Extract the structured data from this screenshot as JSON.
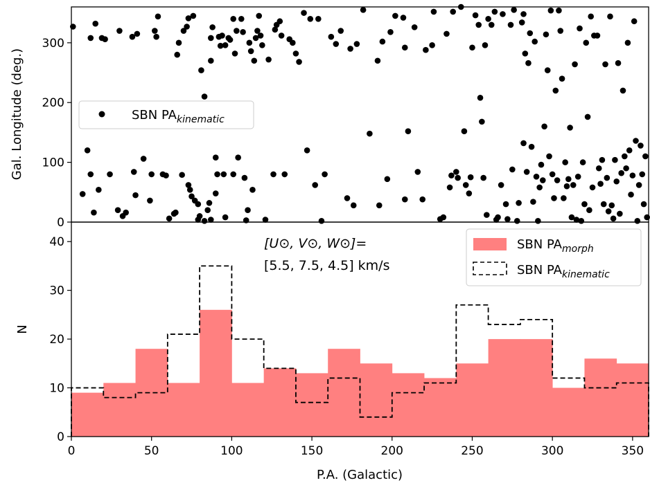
{
  "chart_data": [
    {
      "type": "scatter",
      "ylabel": "Gal. Longitude (deg.)",
      "xlim": [
        0,
        360
      ],
      "ylim": [
        0,
        360
      ],
      "yticks": [
        "0",
        "100",
        "200",
        "300"
      ],
      "legend": {
        "placement": "center-left",
        "label_main": "SBN PA",
        "label_sub": "kinematic"
      },
      "series": [
        {
          "name": "SBN PA_kinematic",
          "color": "#000000",
          "points": [
            [
              1,
              327
            ],
            [
              7,
              47
            ],
            [
              10,
              120
            ],
            [
              12,
              80
            ],
            [
              12,
              308
            ],
            [
              14,
              16
            ],
            [
              15,
              332
            ],
            [
              17,
              54
            ],
            [
              19,
              308
            ],
            [
              21,
              306
            ],
            [
              24,
              80
            ],
            [
              29,
              20
            ],
            [
              30,
              320
            ],
            [
              32,
              10
            ],
            [
              34,
              16
            ],
            [
              38,
              310
            ],
            [
              39,
              84
            ],
            [
              40,
              45
            ],
            [
              41,
              315
            ],
            [
              45,
              106
            ],
            [
              49,
              36
            ],
            [
              50,
              80
            ],
            [
              52,
              320
            ],
            [
              53,
              310
            ],
            [
              54,
              344
            ],
            [
              57,
              80
            ],
            [
              59,
              78
            ],
            [
              61,
              6
            ],
            [
              64,
              14
            ],
            [
              65,
              16
            ],
            [
              66,
              280
            ],
            [
              67,
              300
            ],
            [
              69,
              79
            ],
            [
              70,
              320
            ],
            [
              72,
              327
            ],
            [
              73,
              341
            ],
            [
              73,
              62
            ],
            [
              74,
              54
            ],
            [
              75,
              43
            ],
            [
              76,
              345
            ],
            [
              77,
              36
            ],
            [
              79,
              4
            ],
            [
              79,
              30
            ],
            [
              80,
              10
            ],
            [
              81,
              254
            ],
            [
              83,
              2
            ],
            [
              83,
              210
            ],
            [
              85,
              20
            ],
            [
              86,
              32
            ],
            [
              87,
              4
            ],
            [
              87,
              270
            ],
            [
              87,
              308
            ],
            [
              88,
              326
            ],
            [
              90,
              48
            ],
            [
              90,
              108
            ],
            [
              91,
              80
            ],
            [
              92,
              310
            ],
            [
              93,
              295
            ],
            [
              94,
              312
            ],
            [
              95,
              80
            ],
            [
              96,
              296
            ],
            [
              96,
              8
            ],
            [
              98,
              308
            ],
            [
              99,
              305
            ],
            [
              101,
              80
            ],
            [
              101,
              340
            ],
            [
              102,
              282
            ],
            [
              103,
              320
            ],
            [
              104,
              108
            ],
            [
              106,
              340
            ],
            [
              107,
              318
            ],
            [
              108,
              74
            ],
            [
              109,
              3
            ],
            [
              110,
              20
            ],
            [
              111,
              300
            ],
            [
              112,
              286
            ],
            [
              113,
              54
            ],
            [
              114,
              270
            ],
            [
              115,
              308
            ],
            [
              116,
              320
            ],
            [
              117,
              345
            ],
            [
              118,
              312
            ],
            [
              119,
              296
            ],
            [
              121,
              4
            ],
            [
              123,
              272
            ],
            [
              126,
              80
            ],
            [
              127,
              322
            ],
            [
              128,
              330
            ],
            [
              130,
              336
            ],
            [
              131,
              312
            ],
            [
              133,
              80
            ],
            [
              136,
              306
            ],
            [
              138,
              300
            ],
            [
              140,
              282
            ],
            [
              142,
              268
            ],
            [
              145,
              350
            ],
            [
              147,
              120
            ],
            [
              149,
              340
            ],
            [
              152,
              62
            ],
            [
              154,
              340
            ],
            [
              156,
              2
            ],
            [
              158,
              80
            ],
            [
              162,
              310
            ],
            [
              165,
              298
            ],
            [
              168,
              320
            ],
            [
              172,
              40
            ],
            [
              174,
              290
            ],
            [
              176,
              28
            ],
            [
              178,
              298
            ],
            [
              182,
              355
            ],
            [
              186,
              148
            ],
            [
              191,
              270
            ],
            [
              192,
              28
            ],
            [
              194,
              302
            ],
            [
              197,
              72
            ],
            [
              199,
              318
            ],
            [
              202,
              345
            ],
            [
              207,
              342
            ],
            [
              208,
              38
            ],
            [
              208,
              292
            ],
            [
              210,
              152
            ],
            [
              214,
              326
            ],
            [
              216,
              84
            ],
            [
              219,
              38
            ],
            [
              221,
              288
            ],
            [
              225,
              296
            ],
            [
              226,
              352
            ],
            [
              230,
              5
            ],
            [
              232,
              8
            ],
            [
              234,
              315
            ],
            [
              236,
              58
            ],
            [
              237,
              78
            ],
            [
              238,
              352
            ],
            [
              240,
              84
            ],
            [
              241,
              74
            ],
            [
              243,
              360
            ],
            [
              245,
              152
            ],
            [
              246,
              62
            ],
            [
              248,
              48
            ],
            [
              249,
              75
            ],
            [
              250,
              292
            ],
            [
              252,
              346
            ],
            [
              254,
              330
            ],
            [
              255,
              208
            ],
            [
              256,
              168
            ],
            [
              257,
              74
            ],
            [
              258,
              296
            ],
            [
              259,
              12
            ],
            [
              260,
              340
            ],
            [
              262,
              330
            ],
            [
              264,
              352
            ],
            [
              265,
              4
            ],
            [
              266,
              8
            ],
            [
              268,
              62
            ],
            [
              269,
              348
            ],
            [
              271,
              30
            ],
            [
              272,
              5
            ],
            [
              274,
              330
            ],
            [
              275,
              88
            ],
            [
              276,
              355
            ],
            [
              278,
              2
            ],
            [
              279,
              32
            ],
            [
              281,
              334
            ],
            [
              282,
              348
            ],
            [
              282,
              132
            ],
            [
              283,
              282
            ],
            [
              284,
              84
            ],
            [
              285,
              266
            ],
            [
              286,
              316
            ],
            [
              287,
              126
            ],
            [
              288,
              34
            ],
            [
              289,
              302
            ],
            [
              290,
              76
            ],
            [
              291,
              2
            ],
            [
              292,
              58
            ],
            [
              293,
              96
            ],
            [
              294,
              70
            ],
            [
              295,
              160
            ],
            [
              296,
              314
            ],
            [
              297,
              254
            ],
            [
              298,
              110
            ],
            [
              299,
              354
            ],
            [
              300,
              80
            ],
            [
              301,
              40
            ],
            [
              302,
              220
            ],
            [
              303,
              70
            ],
            [
              304,
              354
            ],
            [
              305,
              320
            ],
            [
              306,
              240
            ],
            [
              307,
              40
            ],
            [
              308,
              100
            ],
            [
              309,
              60
            ],
            [
              310,
              72
            ],
            [
              311,
              158
            ],
            [
              312,
              8
            ],
            [
              313,
              62
            ],
            [
              314,
              264
            ],
            [
              315,
              4
            ],
            [
              316,
              76
            ],
            [
              317,
              324
            ],
            [
              318,
              2
            ],
            [
              319,
              100
            ],
            [
              320,
              30
            ],
            [
              321,
              300
            ],
            [
              322,
              176
            ],
            [
              323,
              20
            ],
            [
              324,
              344
            ],
            [
              325,
              58
            ],
            [
              326,
              312
            ],
            [
              328,
              312
            ],
            [
              329,
              90
            ],
            [
              330,
              64
            ],
            [
              331,
              104
            ],
            [
              332,
              30
            ],
            [
              333,
              264
            ],
            [
              334,
              74
            ],
            [
              335,
              18
            ],
            [
              336,
              344
            ],
            [
              337,
              28
            ],
            [
              338,
              6
            ],
            [
              339,
              104
            ],
            [
              340,
              68
            ],
            [
              341,
              266
            ],
            [
              342,
              14
            ],
            [
              343,
              82
            ],
            [
              344,
              220
            ],
            [
              345,
              110
            ],
            [
              346,
              90
            ],
            [
              347,
              300
            ],
            [
              348,
              120
            ],
            [
              349,
              46
            ],
            [
              350,
              78
            ],
            [
              351,
              336
            ],
            [
              352,
              136
            ],
            [
              353,
              2
            ],
            [
              354,
              62
            ],
            [
              355,
              128
            ],
            [
              356,
              80
            ],
            [
              357,
              30
            ],
            [
              358,
              110
            ],
            [
              359,
              8
            ]
          ]
        }
      ]
    },
    {
      "type": "bar",
      "xlabel": "P.A. (Galactic)",
      "ylabel": "N",
      "xlim": [
        0,
        360
      ],
      "ylim": [
        0,
        44
      ],
      "xticks": [
        "0",
        "50",
        "100",
        "150",
        "200",
        "250",
        "300",
        "350"
      ],
      "yticks": [
        "0",
        "10",
        "20",
        "30",
        "40"
      ],
      "bin_edges": [
        0,
        20,
        40,
        60,
        80,
        100,
        120,
        140,
        160,
        180,
        200,
        220,
        240,
        260,
        280,
        300,
        320,
        340,
        360
      ],
      "annotation": {
        "line1": "[U⊙, V⊙, W⊙]=",
        "line2": "[5.5, 7.5, 4.5] km/s"
      },
      "legend": {
        "placement": "upper-right"
      },
      "series": [
        {
          "name_main": "SBN PA",
          "name_sub": "morph",
          "style": "filled",
          "color": "#ff8080",
          "values": [
            9,
            11,
            18,
            11,
            26,
            11,
            14,
            13,
            18,
            15,
            13,
            12,
            15,
            20,
            20,
            10,
            16,
            15
          ]
        },
        {
          "name_main": "SBN PA",
          "name_sub": "kinematic",
          "style": "dashed-step",
          "color": "#000000",
          "values": [
            10,
            8,
            9,
            21,
            35,
            20,
            14,
            7,
            12,
            4,
            9,
            11,
            27,
            23,
            24,
            12,
            10,
            11
          ]
        }
      ]
    }
  ]
}
